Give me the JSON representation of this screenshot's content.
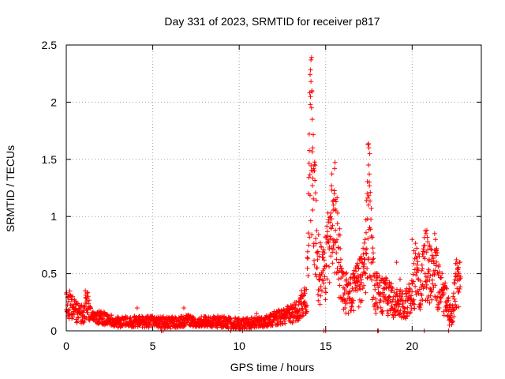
{
  "chart_data": {
    "type": "scatter",
    "title": "Day 331 of 2023, SRMTID for receiver p817",
    "xlabel": "GPS time / hours",
    "ylabel": "SRMTID / TECUs",
    "xlim": [
      0,
      24
    ],
    "ylim": [
      0,
      2.5
    ],
    "xticks": [
      0,
      5,
      10,
      15,
      20
    ],
    "xtick_labels": [
      "0",
      "5",
      "10",
      "15",
      "20"
    ],
    "yticks": [
      0,
      0.5,
      1,
      1.5,
      2,
      2.5
    ],
    "ytick_labels": [
      "0",
      "0.5",
      "1",
      "1.5",
      "2",
      "2.5"
    ],
    "grid": true,
    "marker": "+",
    "series": [
      {
        "name": "SRMTID",
        "color": "#ff0000",
        "profile": [
          [
            0.0,
            0.22
          ],
          [
            0.3,
            0.24
          ],
          [
            0.6,
            0.16
          ],
          [
            1.0,
            0.14
          ],
          [
            1.2,
            0.24
          ],
          [
            1.5,
            0.13
          ],
          [
            2.0,
            0.11
          ],
          [
            3.0,
            0.08
          ],
          [
            4.0,
            0.08
          ],
          [
            5.0,
            0.08
          ],
          [
            6.0,
            0.07
          ],
          [
            7.0,
            0.09
          ],
          [
            8.0,
            0.08
          ],
          [
            9.0,
            0.08
          ],
          [
            10.0,
            0.06
          ],
          [
            11.0,
            0.07
          ],
          [
            11.5,
            0.08
          ],
          [
            12.0,
            0.11
          ],
          [
            12.5,
            0.13
          ],
          [
            13.0,
            0.15
          ],
          [
            13.5,
            0.19
          ],
          [
            13.9,
            0.28
          ],
          [
            14.0,
            0.9
          ],
          [
            14.15,
            1.9
          ],
          [
            14.3,
            1.2
          ],
          [
            14.5,
            0.6
          ],
          [
            14.8,
            0.45
          ],
          [
            15.0,
            0.6
          ],
          [
            15.3,
            0.9
          ],
          [
            15.5,
            1.05
          ],
          [
            15.7,
            0.7
          ],
          [
            16.0,
            0.35
          ],
          [
            16.5,
            0.3
          ],
          [
            17.0,
            0.45
          ],
          [
            17.3,
            0.55
          ],
          [
            17.5,
            1.3
          ],
          [
            17.6,
            0.8
          ],
          [
            17.8,
            0.35
          ],
          [
            18.2,
            0.3
          ],
          [
            18.5,
            0.3
          ],
          [
            19.0,
            0.25
          ],
          [
            19.5,
            0.22
          ],
          [
            20.0,
            0.3
          ],
          [
            20.2,
            0.5
          ],
          [
            20.5,
            0.4
          ],
          [
            20.8,
            0.6
          ],
          [
            21.0,
            0.5
          ],
          [
            21.3,
            0.6
          ],
          [
            21.5,
            0.4
          ],
          [
            22.0,
            0.25
          ],
          [
            22.3,
            0.1
          ],
          [
            22.5,
            0.4
          ],
          [
            22.8,
            0.42
          ]
        ],
        "samples": [
          [
            14.1,
            2.24
          ],
          [
            14.15,
            2.18
          ],
          [
            14.2,
            2.1
          ],
          [
            14.05,
            1.72
          ],
          [
            14.18,
            1.95
          ],
          [
            14.25,
            1.6
          ],
          [
            14.3,
            1.42
          ],
          [
            14.35,
            1.4
          ],
          [
            14.12,
            2.05
          ],
          [
            14.22,
            1.85
          ],
          [
            17.45,
            1.63
          ],
          [
            17.5,
            1.6
          ],
          [
            17.55,
            1.55
          ],
          [
            17.48,
            1.45
          ],
          [
            17.52,
            1.3
          ],
          [
            17.4,
            1.2
          ],
          [
            17.47,
            1.1
          ],
          [
            17.42,
            0.98
          ],
          [
            15.5,
            1.2
          ],
          [
            15.55,
            1.15
          ],
          [
            15.6,
            1.05
          ],
          [
            15.45,
            1.1
          ],
          [
            15.35,
            0.98
          ],
          [
            15.3,
            1.03
          ],
          [
            15.25,
            0.95
          ],
          [
            15.4,
            0.92
          ],
          [
            16.2,
            0.45
          ],
          [
            16.5,
            0.25
          ],
          [
            16.9,
            0.55
          ],
          [
            17.0,
            0.63
          ],
          [
            17.1,
            0.6
          ],
          [
            17.2,
            0.55
          ],
          [
            17.3,
            0.5
          ],
          [
            19.1,
            0.6
          ],
          [
            19.3,
            0.45
          ],
          [
            20.0,
            0.8
          ],
          [
            20.1,
            0.7
          ],
          [
            20.3,
            0.65
          ],
          [
            20.6,
            0.67
          ],
          [
            20.8,
            0.85
          ],
          [
            20.85,
            0.88
          ],
          [
            20.9,
            0.78
          ],
          [
            21.0,
            0.75
          ],
          [
            21.3,
            0.85
          ],
          [
            21.35,
            0.8
          ],
          [
            21.4,
            0.7
          ],
          [
            22.5,
            0.5
          ],
          [
            22.6,
            0.48
          ],
          [
            22.7,
            0.5
          ],
          [
            22.8,
            0.47
          ],
          [
            0.1,
            0.3
          ],
          [
            1.1,
            0.35
          ],
          [
            1.2,
            0.33
          ],
          [
            4.1,
            0.2
          ],
          [
            6.8,
            0.2
          ],
          [
            11.0,
            0.15
          ],
          [
            13.6,
            0.35
          ],
          [
            13.8,
            0.33
          ],
          [
            5.5,
            0.0
          ],
          [
            5.6,
            0.0
          ],
          [
            9.5,
            0.0
          ],
          [
            10.2,
            0.0
          ],
          [
            14.9,
            0.0
          ],
          [
            15.0,
            0.0
          ],
          [
            18.0,
            0.0
          ],
          [
            18.05,
            0.0
          ],
          [
            20.7,
            0.0
          ],
          [
            22.1,
            0.0
          ],
          [
            22.15,
            0.05
          ]
        ]
      }
    ]
  }
}
